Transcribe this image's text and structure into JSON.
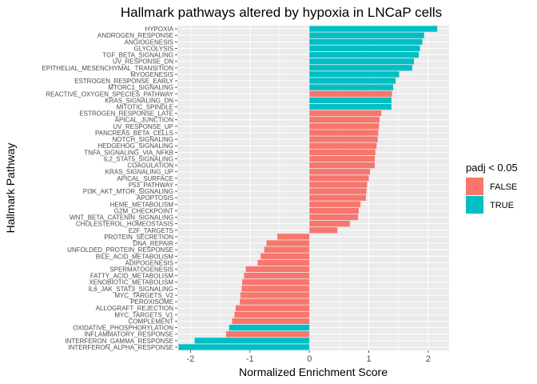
{
  "chart_data": {
    "type": "bar",
    "orientation": "horizontal",
    "title": "Hallmark pathways altered by hypoxia in LNCaP cells",
    "xlabel": "Normalized Enrichment Score",
    "ylabel": "Hallmark Pathway",
    "xlim": [
      -2.22,
      2.35
    ],
    "x_ticks": [
      -2,
      -1,
      0,
      1,
      2
    ],
    "x_tick_labels": [
      "-2",
      "-1",
      "0",
      "1",
      "2"
    ],
    "grid": true,
    "legend": {
      "title": "padj < 0.05",
      "position": "right",
      "entries": [
        {
          "label": "FALSE",
          "key": "false",
          "color": "#F8766D"
        },
        {
          "label": "TRUE",
          "key": "true",
          "color": "#00BFC4"
        }
      ]
    },
    "bars": [
      {
        "pathway": "HYPOXIA",
        "nes": 2.15,
        "padj_sig": true
      },
      {
        "pathway": "ANDROGEN_RESPONSE",
        "nes": 1.93,
        "padj_sig": true
      },
      {
        "pathway": "ANGIOGENESIS",
        "nes": 1.9,
        "padj_sig": true
      },
      {
        "pathway": "GLYCOLYSIS",
        "nes": 1.86,
        "padj_sig": true
      },
      {
        "pathway": "TGF_BETA_SIGNALING",
        "nes": 1.84,
        "padj_sig": true
      },
      {
        "pathway": "UV_RESPONSE_DN",
        "nes": 1.76,
        "padj_sig": true
      },
      {
        "pathway": "EPITHELIAL_MESENCHYMAL_TRANSITION",
        "nes": 1.73,
        "padj_sig": true
      },
      {
        "pathway": "MYOGENESIS",
        "nes": 1.51,
        "padj_sig": true
      },
      {
        "pathway": "ESTROGEN_RESPONSE_EARLY",
        "nes": 1.45,
        "padj_sig": true
      },
      {
        "pathway": "MTORC1_SIGNALING",
        "nes": 1.41,
        "padj_sig": true
      },
      {
        "pathway": "REACTIVE_OXYGEN_SPECIES_PATHWAY",
        "nes": 1.39,
        "padj_sig": false
      },
      {
        "pathway": "KRAS_SIGNALING_DN",
        "nes": 1.38,
        "padj_sig": true
      },
      {
        "pathway": "MITOTIC_SPINDLE",
        "nes": 1.38,
        "padj_sig": true
      },
      {
        "pathway": "ESTROGEN_RESPONSE_LATE",
        "nes": 1.21,
        "padj_sig": false
      },
      {
        "pathway": "APICAL_JUNCTION",
        "nes": 1.18,
        "padj_sig": false
      },
      {
        "pathway": "UV_RESPONSE_UP",
        "nes": 1.17,
        "padj_sig": false
      },
      {
        "pathway": "PANCREAS_BETA_CELLS",
        "nes": 1.16,
        "padj_sig": false
      },
      {
        "pathway": "NOTCH_SIGNALING",
        "nes": 1.15,
        "padj_sig": false
      },
      {
        "pathway": "HEDGEHOG_SIGNALING",
        "nes": 1.13,
        "padj_sig": false
      },
      {
        "pathway": "TNFA_SIGNALING_VIA_NFKB",
        "nes": 1.11,
        "padj_sig": false
      },
      {
        "pathway": "IL2_STAT5_SIGNALING",
        "nes": 1.1,
        "padj_sig": false
      },
      {
        "pathway": "COAGULATION",
        "nes": 1.1,
        "padj_sig": false
      },
      {
        "pathway": "KRAS_SIGNALING_UP",
        "nes": 1.02,
        "padj_sig": false
      },
      {
        "pathway": "APICAL_SURFACE",
        "nes": 1.0,
        "padj_sig": false
      },
      {
        "pathway": "P53_PATHWAY",
        "nes": 0.97,
        "padj_sig": false
      },
      {
        "pathway": "PI3K_AKT_MTOR_SIGNALING",
        "nes": 0.96,
        "padj_sig": false
      },
      {
        "pathway": "APOPTOSIS",
        "nes": 0.95,
        "padj_sig": false
      },
      {
        "pathway": "HEME_METABOLISM",
        "nes": 0.86,
        "padj_sig": false
      },
      {
        "pathway": "G2M_CHECKPOINT",
        "nes": 0.83,
        "padj_sig": false
      },
      {
        "pathway": "WNT_BETA_CATENIN_SIGNALING",
        "nes": 0.82,
        "padj_sig": false
      },
      {
        "pathway": "CHOLESTEROL_HOMEOSTASIS",
        "nes": 0.68,
        "padj_sig": false
      },
      {
        "pathway": "E2F_TARGETS",
        "nes": 0.47,
        "padj_sig": false
      },
      {
        "pathway": "PROTEIN_SECRETION",
        "nes": -0.54,
        "padj_sig": false
      },
      {
        "pathway": "DNA_REPAIR",
        "nes": -0.72,
        "padj_sig": false
      },
      {
        "pathway": "UNFOLDED_PROTEIN_RESPONSE",
        "nes": -0.76,
        "padj_sig": false
      },
      {
        "pathway": "BILE_ACID_METABOLISM",
        "nes": -0.82,
        "padj_sig": false
      },
      {
        "pathway": "ADIPOGENESIS",
        "nes": -0.87,
        "padj_sig": false
      },
      {
        "pathway": "SPERMATOGENESIS",
        "nes": -1.07,
        "padj_sig": false
      },
      {
        "pathway": "FATTY_ACID_METABOLISM",
        "nes": -1.1,
        "padj_sig": false
      },
      {
        "pathway": "XENOBIOTIC_METABOLISM",
        "nes": -1.13,
        "padj_sig": false
      },
      {
        "pathway": "IL6_JAK_STAT3_SIGNALING",
        "nes": -1.14,
        "padj_sig": false
      },
      {
        "pathway": "MYC_TARGETS_V2",
        "nes": -1.16,
        "padj_sig": false
      },
      {
        "pathway": "PEROXISOME",
        "nes": -1.17,
        "padj_sig": false
      },
      {
        "pathway": "ALLOGRAFT_REJECTION",
        "nes": -1.24,
        "padj_sig": false
      },
      {
        "pathway": "MYC_TARGETS_V1",
        "nes": -1.26,
        "padj_sig": false
      },
      {
        "pathway": "COMPLEMENT",
        "nes": -1.3,
        "padj_sig": false
      },
      {
        "pathway": "OXIDATIVE_PHOSPHORYLATION",
        "nes": -1.35,
        "padj_sig": true
      },
      {
        "pathway": "INFLAMMATORY_RESPONSE",
        "nes": -1.4,
        "padj_sig": false
      },
      {
        "pathway": "INTERFERON_GAMMA_RESPONSE",
        "nes": -1.93,
        "padj_sig": true
      },
      {
        "pathway": "INTERFERON_ALPHA_RESPONSE",
        "nes": -2.2,
        "padj_sig": true
      }
    ]
  }
}
